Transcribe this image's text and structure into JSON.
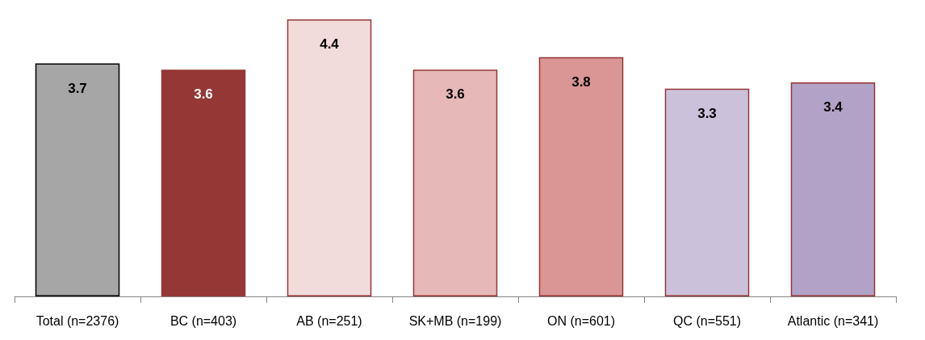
{
  "chart_data": {
    "type": "bar",
    "categories": [
      "Total (n=2376)",
      "BC (n=403)",
      "AB (n=251)",
      "SK+MB (n=199)",
      "ON (n=601)",
      "QC (n=551)",
      "Atlantic (n=341)"
    ],
    "values": [
      3.7,
      3.6,
      4.4,
      3.6,
      3.8,
      3.3,
      3.4
    ],
    "colors": [
      "#a6a6a6",
      "#953735",
      "#f2dcdb",
      "#e6b9b8",
      "#d99694",
      "#ccc1da",
      "#b3a2c7"
    ],
    "data_labels": true
  }
}
